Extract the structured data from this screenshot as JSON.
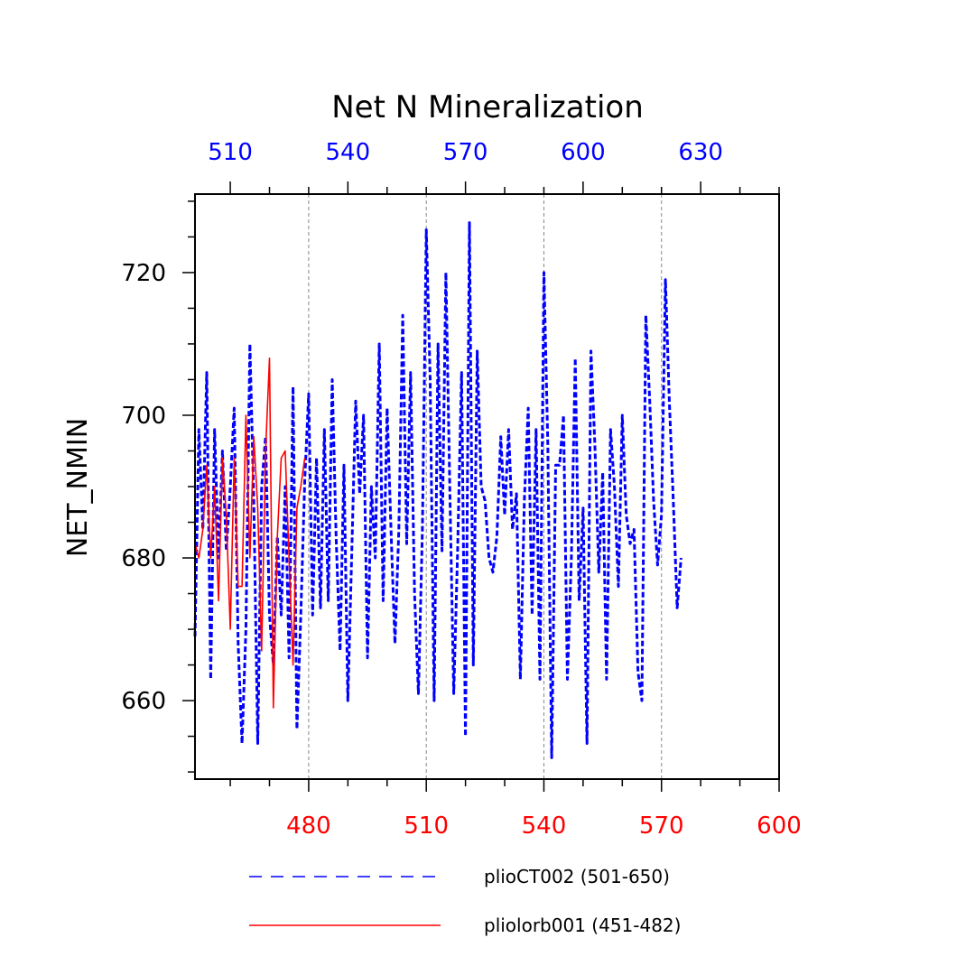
{
  "chart_data": {
    "type": "line",
    "title": "Net N Mineralization",
    "ylabel": "NET_NMIN",
    "xlabel": "",
    "ylim": [
      649,
      731
    ],
    "y_ticks": [
      660,
      680,
      700,
      720
    ],
    "bottom_axis": {
      "color": "#ff0000",
      "range": [
        451,
        600
      ],
      "ticks": [
        480,
        510,
        540,
        570,
        600
      ]
    },
    "top_axis": {
      "color": "#0000ff",
      "range": [
        501,
        650
      ],
      "ticks": [
        510,
        540,
        570,
        600,
        630
      ]
    },
    "vertical_gridlines": [
      480,
      510,
      540,
      570
    ],
    "series": [
      {
        "name": "plioCT002 (501-650)",
        "color": "#0000ff",
        "style": "dashed",
        "x_axis": "top",
        "x_start": 501,
        "values": [
          669,
          698,
          684,
          706,
          663,
          698,
          680,
          695,
          681,
          690,
          701,
          668,
          654,
          670,
          710,
          688,
          654,
          690,
          697,
          672,
          665,
          683,
          672,
          690,
          666,
          704,
          656,
          672,
          691,
          703,
          672,
          694,
          673,
          698,
          674,
          705,
          683,
          667,
          693,
          660,
          681,
          702,
          689,
          700,
          666,
          690,
          680,
          710,
          674,
          701,
          684,
          668,
          684,
          714,
          682,
          706,
          675,
          661,
          684,
          726,
          705,
          660,
          710,
          681,
          720,
          690,
          661,
          681,
          706,
          655,
          727,
          665,
          709,
          690,
          688,
          680,
          678,
          683,
          697,
          686,
          698,
          684,
          689,
          663,
          688,
          701,
          672,
          698,
          663,
          720,
          696,
          652,
          693,
          693,
          700,
          663,
          680,
          708,
          674,
          687,
          654,
          709,
          696,
          678,
          692,
          663,
          698,
          690,
          676,
          700,
          686,
          682,
          684,
          664,
          660,
          714,
          702,
          688,
          679,
          686,
          719,
          702,
          688,
          673,
          680
        ]
      },
      {
        "name": "pliolorb001 (451-482)",
        "color": "#ff0000",
        "style": "solid",
        "x_axis": "bottom",
        "x_start": 451,
        "values": [
          682,
          680,
          684,
          693,
          680,
          690,
          674,
          694,
          686,
          670,
          694,
          676,
          676,
          700,
          680,
          697,
          687,
          667,
          695,
          708,
          659,
          683,
          694,
          695,
          680,
          665,
          687,
          690,
          694
        ]
      }
    ],
    "legend_placement": "bottom"
  }
}
